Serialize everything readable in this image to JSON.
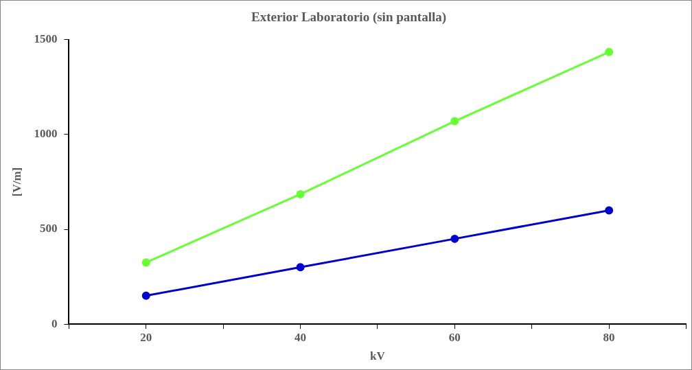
{
  "chart_data": {
    "type": "line",
    "title": "Exterior Laboratorio (sin pantalla)",
    "xlabel": "kV",
    "ylabel": "[V/m]",
    "x": [
      20,
      40,
      60,
      80
    ],
    "series": [
      {
        "color": "#0000cc",
        "values": [
          150,
          300,
          450,
          600
        ]
      },
      {
        "color": "#66ff33",
        "values": [
          325,
          685,
          1070,
          1435
        ]
      }
    ],
    "xlim": [
      10,
      90
    ],
    "xticks": [
      {
        "value": 10,
        "label": null
      },
      20,
      {
        "value": 30,
        "label": null
      },
      40,
      {
        "value": 50,
        "label": null
      },
      60,
      {
        "value": 70,
        "label": null
      },
      80,
      {
        "value": 90,
        "label": null
      }
    ],
    "ylim": [
      0,
      1500
    ],
    "yticks": [
      0,
      500,
      1000,
      1500
    ],
    "grid": false,
    "marker": "circle",
    "line_style": "solid"
  }
}
